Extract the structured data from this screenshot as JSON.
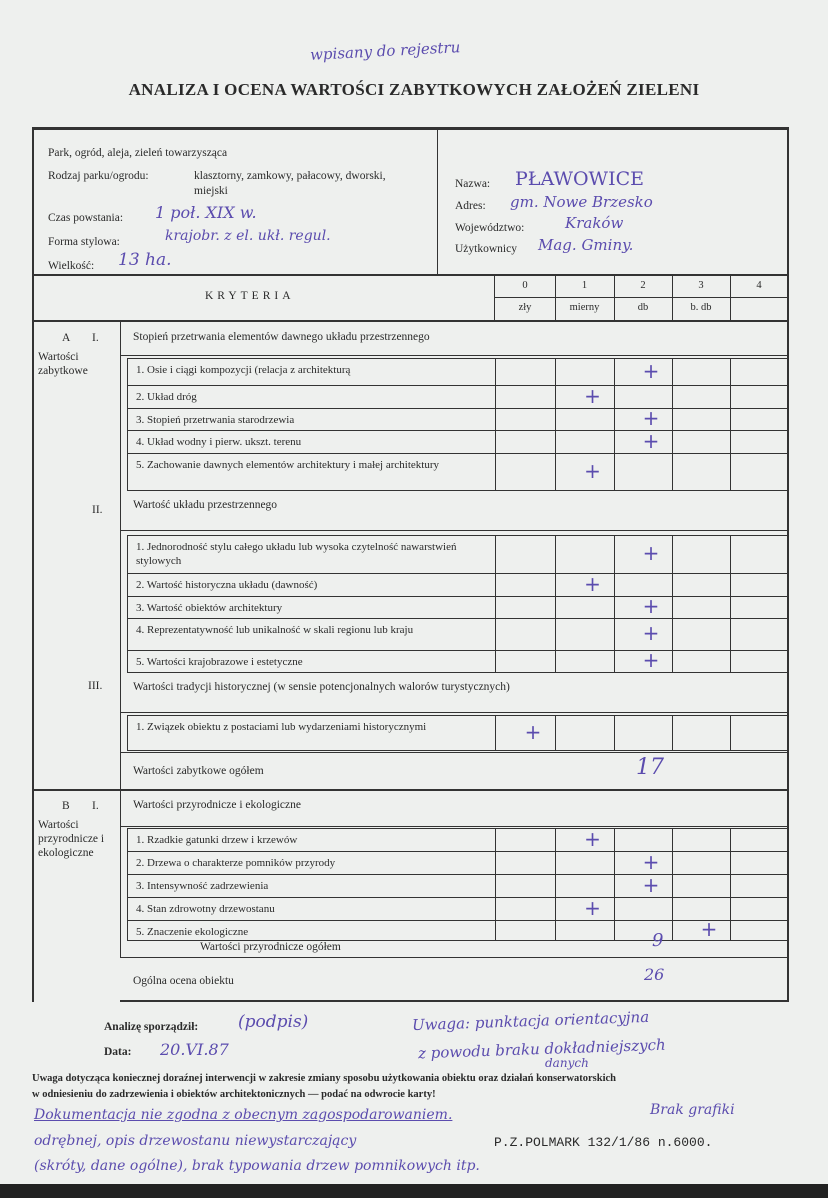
{
  "annotation_top": "wpisany do rejestru",
  "title": "ANALIZA I OCENA WARTOŚCI ZABYTKOWYCH ZAŁOŻEŃ ZIELENI",
  "header": {
    "type_label": "Park, ogród, aleja, zieleń towarzysząca",
    "kind_label": "Rodzaj parku/ogrodu:",
    "kind_options": "klasztorny, zamkowy, pałacowy, dworski,",
    "kind_options2": "miejski",
    "created_label": "Czas powstania:",
    "created_value": "1 poł. XIX w.",
    "style_label": "Forma stylowa:",
    "style_value": "krajobr. z el. ukł. regul.",
    "size_label": "Wielkość:",
    "size_value": "13 ha.",
    "name_label": "Nazwa:",
    "name_value": "PŁAWOWICE",
    "address_label": "Adres:",
    "address_value": "gm. Nowe Brzesko",
    "voiv_label": "Województwo:",
    "voiv_value": "Kraków",
    "users_label": "Użytkownicy",
    "users_value": "Mag. Gminy."
  },
  "criteria_header": "KRYTERIA",
  "scale": [
    {
      "n": "0",
      "l": "zły"
    },
    {
      "n": "1",
      "l": "mierny"
    },
    {
      "n": "2",
      "l": "db"
    },
    {
      "n": "3",
      "l": "b. db"
    },
    {
      "n": "4",
      "l": ""
    }
  ],
  "sectionA": {
    "letter": "A",
    "roman": "I.",
    "name": "Wartości zabytkowe"
  },
  "sectionB": {
    "letter": "B",
    "roman": "I.",
    "name": "Wartości przyrodnicze i ekologiczne"
  },
  "groups": [
    {
      "roman": "I.",
      "label": "Stopień przetrwania elementów dawnego układu przestrzennego"
    },
    {
      "roman": "II.",
      "label": "Wartość układu przestrzennego"
    },
    {
      "roman": "III.",
      "label": "Wartości tradycji historycznej (w sensie potencjonalnych walorów turystycznych)"
    },
    {
      "roman": "I.",
      "label": "Wartości przyrodnicze i ekologiczne"
    }
  ],
  "rows": [
    {
      "label": "1. Osie i ciągi kompozycji (relacja z architekturą",
      "score": 2
    },
    {
      "label": "2. Układ dróg",
      "score": 1
    },
    {
      "label": "3. Stopień przetrwania starodrzewia",
      "score": 2
    },
    {
      "label": "4. Układ wodny i pierw. ukszt. terenu",
      "score": 2
    },
    {
      "label": "5. Zachowanie dawnych elementów architektury i małej architektury",
      "score": 1
    },
    {
      "label": "1. Jednorodność stylu całego układu lub wysoka czytelność nawarstwień stylowych",
      "score": 2
    },
    {
      "label": "2. Wartość historyczna układu (dawność)",
      "score": 1
    },
    {
      "label": "3. Wartość obiektów architektury",
      "score": 2
    },
    {
      "label": "4. Reprezentatywność lub unikalność w skali regionu lub kraju",
      "score": 2
    },
    {
      "label": "5. Wartości krajobrazowe i estetyczne",
      "score": 2
    },
    {
      "label": "1. Związek obiektu z postaciami lub wydarzeniami historycznymi",
      "score": 0
    },
    {
      "label": "1. Rzadkie gatunki drzew i krzewów",
      "score": 1
    },
    {
      "label": "2. Drzewa o charakterze pomników przyrody",
      "score": 2
    },
    {
      "label": "3. Intensywność zadrzewienia",
      "score": 2
    },
    {
      "label": "4. Stan zdrowotny drzewostanu",
      "score": 1
    },
    {
      "label": "5. Znaczenie ekologiczne",
      "score": 3
    }
  ],
  "totals": {
    "heritage_label": "Wartości zabytkowe ogółem",
    "heritage_value": "17",
    "nature_label": "Wartości przyrodnicze ogółem",
    "nature_value": "9",
    "overall_label": "Ogólna ocena obiektu",
    "overall_value": "26"
  },
  "footer": {
    "author_label": "Analizę sporządził:",
    "author_value": "(podpis)",
    "date_label": "Data:",
    "date_value": "20.VI.87",
    "note_hw1": "Uwaga: punktacja orientacyjna",
    "note_hw2": "z powodu braku dokładniejszych",
    "note_hw3": "danych",
    "notice": "Uwaga dotycząca koniecznej doraźnej interwencji w zakresie zmiany sposobu użytkowania obiektu oraz działań konserwatorskich",
    "notice2": "w odniesieniu do zadrzewienia i obiektów architektonicznych — podać na odwrocie karty!",
    "hw_line1": "Dokumentacja nie zgodna z obecnym zagospodarowaniem.",
    "hw_line1b": "Brak grafiki",
    "hw_line2": "odrębnej, opis drzewostanu niewystarczający",
    "hw_line3": "(skróty, dane ogólne), brak typowania drzew pomnikowych itp.",
    "printer": "P.Z.POLMARK 132/1/86 n.6000."
  }
}
